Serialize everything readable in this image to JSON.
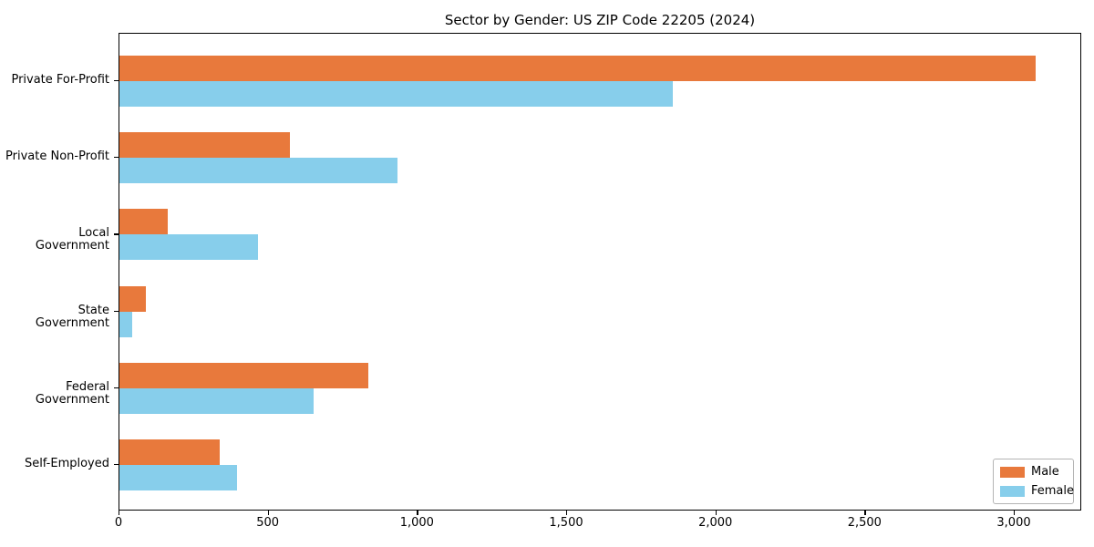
{
  "title": "Sector by Gender: US ZIP Code 22205 (2024)",
  "chart_data": {
    "type": "bar",
    "orientation": "horizontal",
    "title": "Sector by Gender: US ZIP Code 22205 (2024)",
    "categories": [
      "Private For-Profit",
      "Private Non-Profit",
      "Local Government",
      "State Government",
      "Federal Government",
      "Self-Employed"
    ],
    "series": [
      {
        "name": "Male",
        "color": "#E8793C",
        "values": [
          3070,
          572,
          163,
          89,
          833,
          336
        ]
      },
      {
        "name": "Female",
        "color": "#87CEEB",
        "values": [
          1855,
          933,
          463,
          44,
          650,
          395
        ]
      }
    ],
    "xlabel": "",
    "ylabel": "",
    "xlim": [
      0,
      3226
    ],
    "xticks": [
      0,
      500,
      1000,
      1500,
      2000,
      2500,
      3000
    ],
    "xtick_labels": [
      "0",
      "500",
      "1,000",
      "1,500",
      "2,000",
      "2,500",
      "3,000"
    ],
    "grid": false,
    "legend": {
      "position": "lower-right",
      "entries": [
        "Male",
        "Female"
      ]
    }
  }
}
